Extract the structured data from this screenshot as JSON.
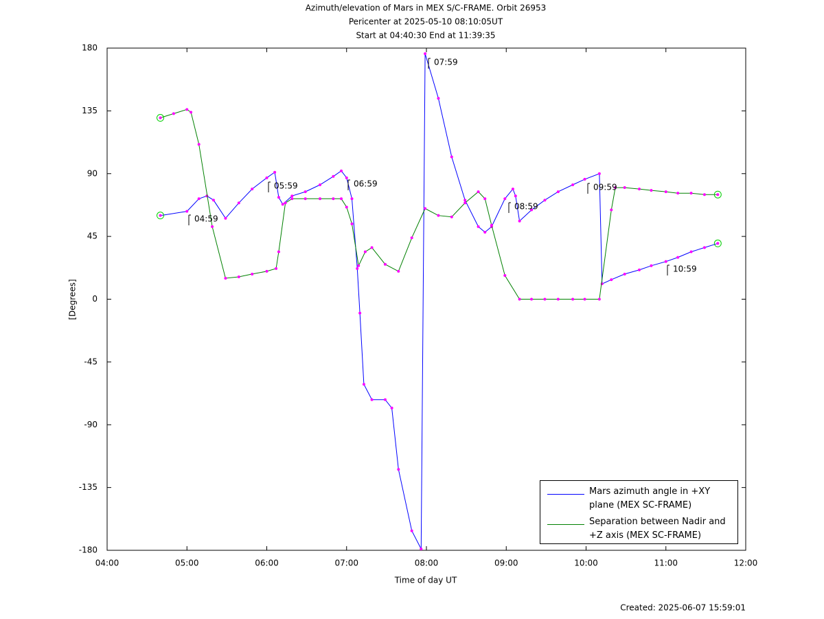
{
  "chart_data": {
    "type": "line",
    "title": "Azimuth/elevation of Mars in MEX S/C-FRAME.  Orbit 26953",
    "subtitles": [
      "Pericenter at 2025-05-10 08:10:05UT",
      "Start at 04:40:30 End at 11:39:35"
    ],
    "x_label": "Time of day UT",
    "y_label": "[Degrees]",
    "footnote": "Created: 2025-06-07 15:59:01",
    "xlim": [
      "04:00",
      "12:00"
    ],
    "xticks": [
      "04:00",
      "05:00",
      "06:00",
      "07:00",
      "08:00",
      "09:00",
      "10:00",
      "11:00",
      "12:00"
    ],
    "ylim": [
      -180,
      180
    ],
    "yticks": [
      180,
      135,
      90,
      45,
      0,
      -45,
      -90,
      -135,
      -180
    ],
    "marker_color": "#ff00ff",
    "end_marker_color": "#00cc00",
    "annotations": [
      "04:59",
      "05:59",
      "06:59",
      "07:59",
      "08:59",
      "09:59",
      "10:59"
    ],
    "series": [
      {
        "name": "Mars azimuth angle in +XY plane (MEX SC-FRAME)",
        "color": "#0000ff",
        "x": [
          "04:40",
          "05:00",
          "05:09",
          "05:15",
          "05:20",
          "05:29",
          "05:39",
          "05:49",
          "06:00",
          "06:06",
          "06:09",
          "06:12",
          "06:19",
          "06:29",
          "06:40",
          "06:50",
          "06:56",
          "07:00",
          "07:04",
          "07:08",
          "07:10",
          "07:13",
          "07:19",
          "07:29",
          "07:34",
          "07:39",
          "07:49",
          "07:56",
          "07:59",
          "08:09",
          "08:19",
          "08:29",
          "08:39",
          "08:44",
          "08:49",
          "08:59",
          "09:05",
          "09:07",
          "09:10",
          "09:19",
          "09:29",
          "09:39",
          "09:50",
          "09:59",
          "10:10",
          "10:12",
          "10:19",
          "10:29",
          "10:40",
          "10:49",
          "11:00",
          "11:09",
          "11:19",
          "11:29",
          "11:39"
        ],
        "values": [
          60,
          63,
          72,
          74,
          71,
          58,
          69,
          79,
          87,
          91,
          73,
          68,
          74,
          77,
          82,
          88,
          92,
          87,
          72,
          22,
          -10,
          -61,
          -72,
          -72,
          -78,
          -122,
          -166,
          -179,
          176,
          144,
          102,
          71,
          52,
          48,
          52,
          72,
          79,
          74,
          56,
          64,
          71,
          77,
          82,
          86,
          90,
          11,
          14,
          18,
          21,
          24,
          27,
          30,
          34,
          37,
          40
        ]
      },
      {
        "name": "Separation between Nadir and +Z axis (MEX SC-FRAME)",
        "color": "#008000",
        "x": [
          "04:40",
          "04:50",
          "05:00",
          "05:03",
          "05:09",
          "05:19",
          "05:29",
          "05:39",
          "05:49",
          "06:00",
          "06:07",
          "06:09",
          "06:14",
          "06:19",
          "06:29",
          "06:40",
          "06:50",
          "06:56",
          "07:00",
          "07:04",
          "07:09",
          "07:14",
          "07:19",
          "07:29",
          "07:39",
          "07:49",
          "07:59",
          "08:09",
          "08:19",
          "08:29",
          "08:39",
          "08:44",
          "08:49",
          "08:59",
          "09:10",
          "09:19",
          "09:29",
          "09:39",
          "09:50",
          "09:59",
          "10:10",
          "10:19",
          "10:22",
          "10:29",
          "10:40",
          "10:49",
          "11:00",
          "11:09",
          "11:19",
          "11:29",
          "11:39"
        ],
        "values": [
          130,
          133,
          136,
          134,
          111,
          52,
          15,
          16,
          18,
          20,
          22,
          34,
          69,
          72,
          72,
          72,
          72,
          72,
          66,
          54,
          24,
          34,
          37,
          25,
          20,
          44,
          65,
          60,
          59,
          69,
          77,
          72,
          53,
          17,
          0,
          0,
          0,
          0,
          0,
          0,
          0,
          64,
          80,
          80,
          79,
          78,
          77,
          76,
          76,
          75,
          75
        ]
      }
    ]
  }
}
